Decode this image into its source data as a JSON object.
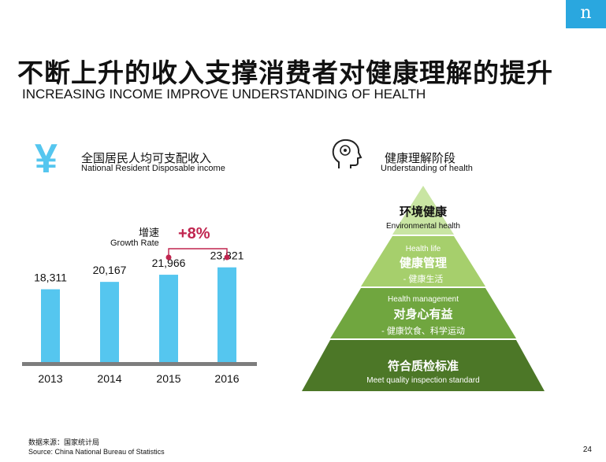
{
  "brand": {
    "logo_letter": "n",
    "color": "#2aa7df"
  },
  "title": {
    "cn": "不断上升的收入支撑消费者对健康理解的提升",
    "en": "INCREASING INCOME IMPROVE UNDERSTANDING OF HEALTH"
  },
  "income": {
    "icon_glyph": "¥",
    "label_cn": "全国居民人均可支配收入",
    "label_en": "National Resident Disposable income",
    "growth_label_cn": "增速",
    "growth_label_en": "Growth Rate",
    "growth_value": "+8%"
  },
  "health": {
    "label_cn": "健康理解阶段",
    "label_en": "Understanding of health",
    "levels": [
      {
        "sub_en": "",
        "title_cn": "环境健康",
        "title_en": "Environmental health",
        "detail": ""
      },
      {
        "sub_en": "Health life",
        "title_cn": "健康管理",
        "title_en": "",
        "detail": "-  健康生活"
      },
      {
        "sub_en": "Health management",
        "title_cn": "对身心有益",
        "title_en": "",
        "detail": "-  健康饮食、科学运动"
      },
      {
        "sub_en": "",
        "title_cn": "符合质检标准",
        "title_en": "Meet quality inspection standard",
        "detail": ""
      }
    ],
    "colors": [
      "#c9e5a3",
      "#a6cf6c",
      "#70a63f",
      "#4c7727"
    ]
  },
  "chart_data": {
    "type": "bar",
    "categories": [
      "2013",
      "2014",
      "2015",
      "2016"
    ],
    "values": [
      18311,
      20167,
      21966,
      23821
    ],
    "value_labels": [
      "18,311",
      "20,167",
      "21,966",
      "23,821"
    ],
    "bar_color": "#55c6ef",
    "title": "全国居民人均可支配收入",
    "annotation": "+8%",
    "annotation_span": [
      "2015",
      "2016"
    ]
  },
  "source": {
    "cn": "数据来源：国家统计局",
    "en": "Source: China National Bureau of Statistics"
  },
  "page_number": "24"
}
